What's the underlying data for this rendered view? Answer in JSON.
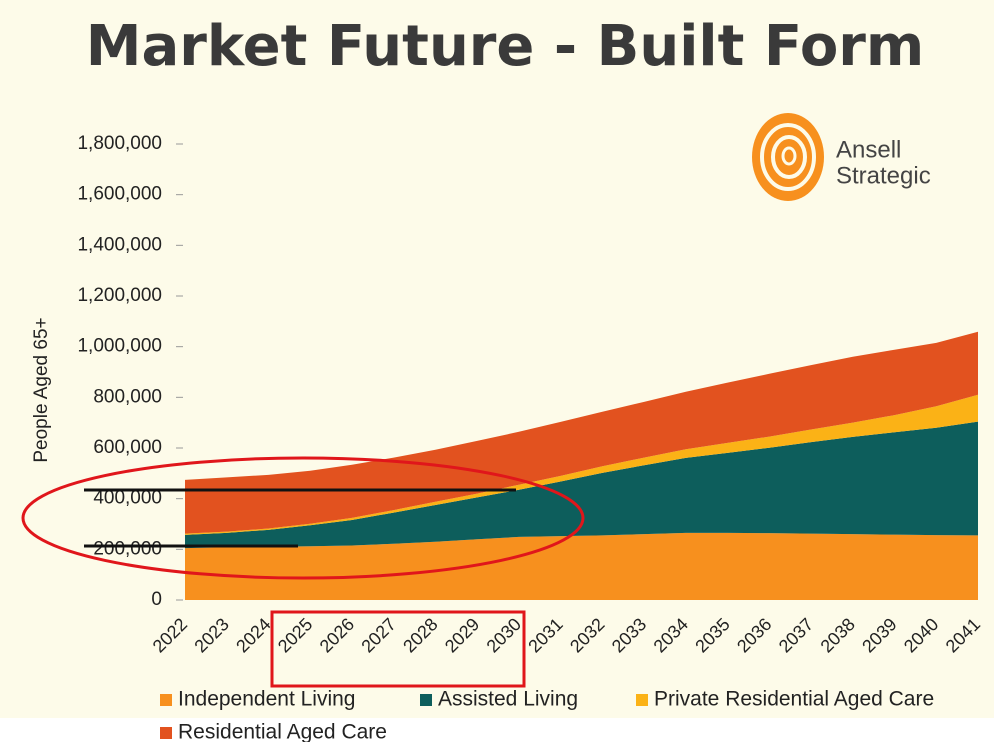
{
  "chart_data": {
    "type": "stacked_area",
    "title": "Market Future - Built Form",
    "logo_text": [
      "Ansell",
      "Strategic"
    ],
    "y_label": "People Aged 65+",
    "categories": [
      "2022",
      "2023",
      "2024",
      "2025",
      "2026",
      "2027",
      "2028",
      "2029",
      "2030",
      "2031",
      "2032",
      "2033",
      "2034",
      "2035",
      "2036",
      "2037",
      "2038",
      "2039",
      "2040",
      "2041"
    ],
    "series": [
      {
        "name": "Independent Living",
        "color": "#f7901e",
        "values": [
          205000,
          208000,
          210000,
          212000,
          215000,
          222000,
          230000,
          240000,
          249000,
          252000,
          255000,
          260000,
          265000,
          265000,
          264000,
          262000,
          260000,
          258000,
          256000,
          255000
        ]
      },
      {
        "name": "Assisted Living",
        "color": "#0d5e5c",
        "values": [
          52000,
          57000,
          67000,
          83000,
          101000,
          123000,
          145000,
          165000,
          186000,
          216000,
          247000,
          272000,
          296000,
          316000,
          337000,
          361000,
          384000,
          404000,
          424000,
          449000
        ]
      },
      {
        "name": "Private Residential Aged Care",
        "color": "#fbb216",
        "values": [
          5000,
          5000,
          5000,
          6000,
          8000,
          10000,
          13000,
          15000,
          20000,
          22000,
          26000,
          30000,
          34000,
          39000,
          44000,
          50000,
          56000,
          68000,
          85000,
          106000
        ]
      },
      {
        "name": "Residential Aged Care",
        "color": "#e2521f",
        "values": [
          212000,
          214000,
          212000,
          209000,
          210000,
          207000,
          205000,
          208000,
          209000,
          213000,
          215000,
          220000,
          227000,
          238000,
          248000,
          254000,
          260000,
          258000,
          250000,
          249000
        ]
      }
    ],
    "ylim": [
      0,
      1800000
    ],
    "yticks": [
      0,
      {
        "value": 200000,
        "label": "200,000"
      },
      {
        "value": 400000,
        "label": "400,000"
      },
      {
        "value": 600000,
        "label": "600,000"
      },
      {
        "value": 800000,
        "label": "800,000"
      },
      {
        "value": 1000000,
        "label": "1,000,000"
      },
      {
        "value": 1200000,
        "label": "1,200,000"
      },
      {
        "value": 1400000,
        "label": "1,400,000"
      },
      {
        "value": 1600000,
        "label": "1,600,000"
      },
      {
        "value": 1800000,
        "label": "1,800,000"
      }
    ],
    "grid": false
  }
}
